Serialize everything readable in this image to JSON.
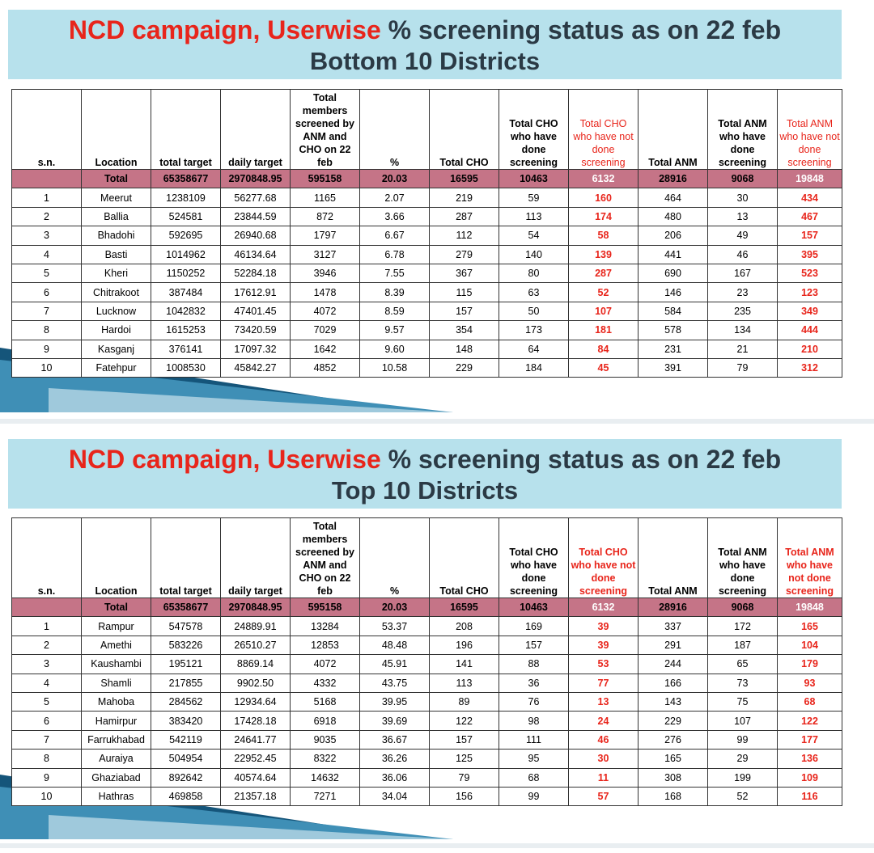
{
  "columns": [
    "s.n.",
    "Location",
    "total target",
    "daily target",
    "Total members screened by ANM and CHO on 22 feb",
    "%",
    "Total CHO",
    "Total CHO who have done screening",
    "Total CHO who have not done screening",
    "Total ANM",
    "Total ANM who have done screening",
    "Total ANM who have not done screening"
  ],
  "colors": {
    "title_bar": "#b7e1ec",
    "title_red": "#e8251b",
    "total_row": "#c57487",
    "decor_dark": "#15557a"
  },
  "slide1": {
    "title_red": "NCD campaign, Userwise",
    "title_rest": " % screening status as on 22 feb",
    "subtitle": "Bottom 10 Districts",
    "headers": {
      "sn": "s.n.",
      "location": "Location",
      "total_target": "total target",
      "daily_target": "daily target",
      "screened": "Total members screened by ANM and CHO on 22 feb",
      "pct": "%",
      "total_cho": "Total CHO",
      "cho_done": "Total CHO who have done screening",
      "cho_not_done": "Total CHO who have not done screening",
      "total_anm": "Total ANM",
      "anm_done": "Total ANM who have done screening",
      "anm_not_done": "Total ANM who have not done screening"
    },
    "total": [
      "",
      "Total",
      "65358677",
      "2970848.95",
      "595158",
      "20.03",
      "16595",
      "10463",
      "6132",
      "28916",
      "9068",
      "19848"
    ],
    "rows": [
      [
        "1",
        "Meerut",
        "1238109",
        "56277.68",
        "1165",
        "2.07",
        "219",
        "59",
        "160",
        "464",
        "30",
        "434"
      ],
      [
        "2",
        "Ballia",
        "524581",
        "23844.59",
        "872",
        "3.66",
        "287",
        "113",
        "174",
        "480",
        "13",
        "467"
      ],
      [
        "3",
        "Bhadohi",
        "592695",
        "26940.68",
        "1797",
        "6.67",
        "112",
        "54",
        "58",
        "206",
        "49",
        "157"
      ],
      [
        "4",
        "Basti",
        "1014962",
        "46134.64",
        "3127",
        "6.78",
        "279",
        "140",
        "139",
        "441",
        "46",
        "395"
      ],
      [
        "5",
        "Kheri",
        "1150252",
        "52284.18",
        "3946",
        "7.55",
        "367",
        "80",
        "287",
        "690",
        "167",
        "523"
      ],
      [
        "6",
        "Chitrakoot",
        "387484",
        "17612.91",
        "1478",
        "8.39",
        "115",
        "63",
        "52",
        "146",
        "23",
        "123"
      ],
      [
        "7",
        "Lucknow",
        "1042832",
        "47401.45",
        "4072",
        "8.59",
        "157",
        "50",
        "107",
        "584",
        "235",
        "349"
      ],
      [
        "8",
        "Hardoi",
        "1615253",
        "73420.59",
        "7029",
        "9.57",
        "354",
        "173",
        "181",
        "578",
        "134",
        "444"
      ],
      [
        "9",
        "Kasganj",
        "376141",
        "17097.32",
        "1642",
        "9.60",
        "148",
        "64",
        "84",
        "231",
        "21",
        "210"
      ],
      [
        "10",
        "Fatehpur",
        "1008530",
        "45842.27",
        "4852",
        "10.58",
        "229",
        "184",
        "45",
        "391",
        "79",
        "312"
      ]
    ]
  },
  "slide2": {
    "title_red": "NCD campaign, Userwise",
    "title_rest": " % screening status as on 22 feb",
    "subtitle": "Top 10 Districts",
    "headers": {
      "sn": "s.n.",
      "location": "Location",
      "total_target": "total target",
      "daily_target": "daily target",
      "screened": "Total members screened by ANM and CHO on 22 feb",
      "pct": "%",
      "total_cho": "Total CHO",
      "cho_done": "Total CHO who have done screening",
      "cho_not_done": "Total CHO who have not done screening",
      "total_anm": "Total ANM",
      "anm_done": "Total ANM who have done screening",
      "anm_not_done": "Total ANM who have not done screening"
    },
    "total": [
      "",
      "Total",
      "65358677",
      "2970848.95",
      "595158",
      "20.03",
      "16595",
      "10463",
      "6132",
      "28916",
      "9068",
      "19848"
    ],
    "rows": [
      [
        "1",
        "Rampur",
        "547578",
        "24889.91",
        "13284",
        "53.37",
        "208",
        "169",
        "39",
        "337",
        "172",
        "165"
      ],
      [
        "2",
        "Amethi",
        "583226",
        "26510.27",
        "12853",
        "48.48",
        "196",
        "157",
        "39",
        "291",
        "187",
        "104"
      ],
      [
        "3",
        "Kaushambi",
        "195121",
        "8869.14",
        "4072",
        "45.91",
        "141",
        "88",
        "53",
        "244",
        "65",
        "179"
      ],
      [
        "4",
        "Shamli",
        "217855",
        "9902.50",
        "4332",
        "43.75",
        "113",
        "36",
        "77",
        "166",
        "73",
        "93"
      ],
      [
        "5",
        "Mahoba",
        "284562",
        "12934.64",
        "5168",
        "39.95",
        "89",
        "76",
        "13",
        "143",
        "75",
        "68"
      ],
      [
        "6",
        "Hamirpur",
        "383420",
        "17428.18",
        "6918",
        "39.69",
        "122",
        "98",
        "24",
        "229",
        "107",
        "122"
      ],
      [
        "7",
        "Farrukhabad",
        "542119",
        "24641.77",
        "9035",
        "36.67",
        "157",
        "111",
        "46",
        "276",
        "99",
        "177"
      ],
      [
        "8",
        "Auraiya",
        "504954",
        "22952.45",
        "8322",
        "36.26",
        "125",
        "95",
        "30",
        "165",
        "29",
        "136"
      ],
      [
        "9",
        "Ghaziabad",
        "892642",
        "40574.64",
        "14632",
        "36.06",
        "79",
        "68",
        "11",
        "308",
        "199",
        "109"
      ],
      [
        "10",
        "Hathras",
        "469858",
        "21357.18",
        "7271",
        "34.04",
        "156",
        "99",
        "57",
        "168",
        "52",
        "116"
      ]
    ]
  }
}
